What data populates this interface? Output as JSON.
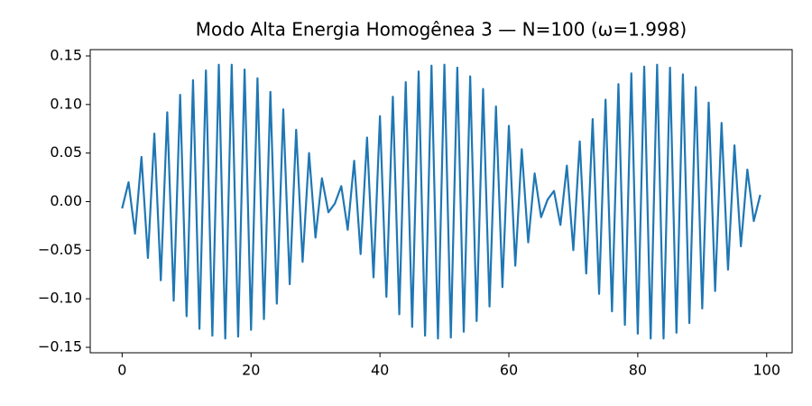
{
  "chart_data": {
    "type": "line",
    "title": "Modo Alta Energia Homogênea 3 — N=100 (ω=1.998)",
    "x": [
      0,
      1,
      2,
      3,
      4,
      5,
      6,
      7,
      8,
      9,
      10,
      11,
      12,
      13,
      14,
      15,
      16,
      17,
      18,
      19,
      20,
      21,
      22,
      23,
      24,
      25,
      26,
      27,
      28,
      29,
      30,
      31,
      32,
      33,
      34,
      35,
      36,
      37,
      38,
      39,
      40,
      41,
      42,
      43,
      44,
      45,
      46,
      47,
      48,
      49,
      50,
      51,
      52,
      53,
      54,
      55,
      56,
      57,
      58,
      59,
      60,
      61,
      62,
      63,
      64,
      65,
      66,
      67,
      68,
      69,
      70,
      71,
      72,
      73,
      74,
      75,
      76,
      77,
      78,
      79,
      80,
      81,
      82,
      83,
      84,
      85,
      86,
      87,
      88,
      89,
      90,
      91,
      92,
      93,
      94,
      95,
      96,
      97,
      98,
      99
    ],
    "series": [
      {
        "color": "#1f77b4",
        "values": [
          -0.007,
          0.02,
          -0.033,
          0.046,
          -0.058,
          0.07,
          -0.081,
          0.092,
          -0.102,
          0.11,
          -0.118,
          0.125,
          -0.131,
          0.135,
          -0.138,
          0.141,
          -0.141,
          0.141,
          -0.139,
          0.136,
          -0.132,
          0.127,
          -0.121,
          0.113,
          -0.105,
          0.095,
          -0.085,
          0.074,
          -0.062,
          0.05,
          -0.037,
          0.024,
          -0.011,
          -0.002,
          0.016,
          -0.029,
          0.042,
          -0.054,
          0.066,
          -0.078,
          0.088,
          -0.098,
          0.108,
          -0.116,
          0.123,
          -0.129,
          0.134,
          -0.138,
          0.14,
          -0.141,
          0.141,
          -0.14,
          0.138,
          -0.134,
          0.129,
          -0.123,
          0.116,
          -0.108,
          0.098,
          -0.088,
          0.078,
          -0.066,
          0.054,
          -0.042,
          0.029,
          -0.016,
          0.002,
          0.011,
          -0.024,
          0.037,
          -0.05,
          0.062,
          -0.074,
          0.085,
          -0.095,
          0.105,
          -0.113,
          0.121,
          -0.127,
          0.132,
          -0.136,
          0.139,
          -0.141,
          0.141,
          -0.141,
          0.138,
          -0.135,
          0.131,
          -0.125,
          0.118,
          -0.11,
          0.102,
          -0.092,
          0.081,
          -0.07,
          0.058,
          -0.046,
          0.033,
          -0.02,
          0.007
        ]
      }
    ],
    "xlim": [
      -4.95,
      103.95
    ],
    "ylim": [
      -0.1556,
      0.1565
    ],
    "xticks": [
      0,
      20,
      40,
      60,
      80,
      100
    ],
    "yticks": [
      {
        "value": -0.15,
        "label": "−0.15"
      },
      {
        "value": -0.1,
        "label": "−0.10"
      },
      {
        "value": -0.05,
        "label": "−0.05"
      },
      {
        "value": 0,
        "label": "0.00"
      },
      {
        "value": 0.05,
        "label": "0.05"
      },
      {
        "value": 0.1,
        "label": "0.10"
      },
      {
        "value": 0.15,
        "label": "0.15"
      }
    ],
    "grid": false
  }
}
